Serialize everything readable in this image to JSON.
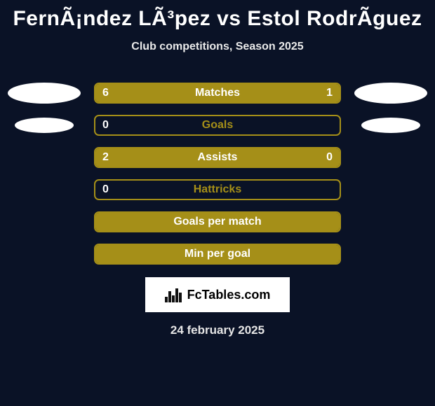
{
  "colors": {
    "background": "#0a1226",
    "row_border": "#a58f18",
    "row_fill": "#a58f18",
    "row_fill_right": "#a58f18",
    "text_on_fill": "#ffffff",
    "label_dim": "#a58f18",
    "label_white": "#ffffff"
  },
  "title": "FernÃ¡ndez LÃ³pez vs Estol RodrÃ­guez",
  "subtitle": "Club competitions, Season 2025",
  "rows": [
    {
      "label": "Matches",
      "left_value": "6",
      "right_value": "1",
      "left_pct": 80,
      "right_pct": 20,
      "show_left_ellipse": "lg",
      "show_right_ellipse": "lg",
      "label_color": "#ffffff"
    },
    {
      "label": "Goals",
      "left_value": "0",
      "right_value": "",
      "left_pct": 0,
      "right_pct": 0,
      "show_left_ellipse": "sm",
      "show_right_ellipse": "sm",
      "label_color": "#a58f18"
    },
    {
      "label": "Assists",
      "left_value": "2",
      "right_value": "0",
      "left_pct": 80,
      "right_pct": 20,
      "show_left_ellipse": "",
      "show_right_ellipse": "",
      "label_color": "#ffffff"
    },
    {
      "label": "Hattricks",
      "left_value": "0",
      "right_value": "",
      "left_pct": 0,
      "right_pct": 0,
      "show_left_ellipse": "",
      "show_right_ellipse": "",
      "label_color": "#a58f18"
    },
    {
      "label": "Goals per match",
      "left_value": "",
      "right_value": "",
      "left_pct": 100,
      "right_pct": 0,
      "show_left_ellipse": "",
      "show_right_ellipse": "",
      "label_color": "#ffffff"
    },
    {
      "label": "Min per goal",
      "left_value": "",
      "right_value": "",
      "left_pct": 100,
      "right_pct": 0,
      "show_left_ellipse": "",
      "show_right_ellipse": "",
      "label_color": "#ffffff"
    }
  ],
  "logo_text": "FcTables.com",
  "date": "24 february 2025"
}
